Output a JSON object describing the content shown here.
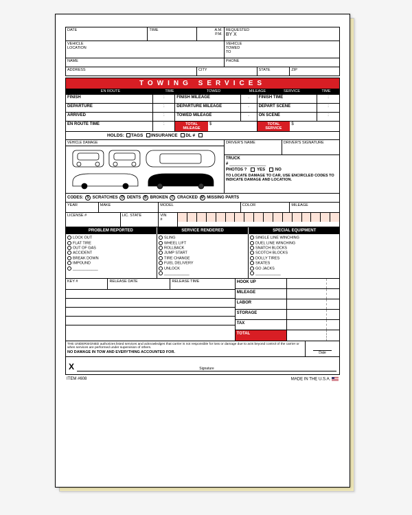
{
  "colors": {
    "red": "#d81e24",
    "black": "#000000",
    "white": "#ffffff",
    "vin_bg": "#fde4d9",
    "copy_bg": "#f0e8b8"
  },
  "header": {
    "date": "DATE",
    "time": "TIME",
    "am": "A.M.",
    "pm": "P.M.",
    "requested_by": "REQUESTED",
    "by_x": "BY X",
    "vehicle": "VEHICLE",
    "location": "LOCATION",
    "towed_to": "VEHICLE\nTOWED\nTO",
    "name": "NAME",
    "phone": "PHONE",
    "address": "ADDRESS",
    "city": "CITY",
    "state": "STATE",
    "zip": "ZIP"
  },
  "banner": "TOWING SERVICES",
  "svc_headers": {
    "en_route": "EN ROUTE",
    "time": "TIME",
    "towed": "TOWED",
    "mileage": "MILEAGE",
    "service": "SERVICE",
    "time2": "TIME"
  },
  "svc_rows": {
    "finish": "FINISH",
    "finish_mileage": "FINISH MILEAGE",
    "finish_time": "FINISH TIME",
    "departure": "DEPARTURE",
    "departure_mileage": "DEPARTURE MILEAGE",
    "depart_scene": "DEPART SCENE",
    "arrived": "ARRIVED",
    "towed_mileage": "TOWED MILEAGE",
    "on_scene": "ON SCENE",
    "en_route_time": "EN ROUTE TIME",
    "total_mileage": "TOTAL\nMILEAGE",
    "total_service": "TOTAL\nSERVICE",
    "dollar": "$"
  },
  "holds": {
    "label": "HOLDS:",
    "tags": "TAGS",
    "insurance": "INSURANCE",
    "dl": "DL #"
  },
  "mid": {
    "vehicle_damage": "VEHICLE DAMAGE",
    "drivers_name": "DRIVER'S NAME",
    "drivers_signature": "DRIVER'S SIGNATURE",
    "truck": "TRUCK",
    "hash": "#",
    "photos": "PHOTOS ?",
    "yes": "YES",
    "no": "NO",
    "locate": "TO LOCATE DAMAGE TO CAR, USE ENCIRCLED CODES TO INDICATE DAMAGE AND LOCATION."
  },
  "codes": {
    "label": "CODES:",
    "items": [
      {
        "sym": "S",
        "txt": "SCRATCHES"
      },
      {
        "sym": "D",
        "txt": "DENTS"
      },
      {
        "sym": "B",
        "txt": "BROKEN"
      },
      {
        "sym": "C",
        "txt": "CRACKED"
      },
      {
        "sym": "M",
        "txt": "MISSING PARTS"
      }
    ]
  },
  "veh": {
    "year": "YEAR",
    "make": "MAKE",
    "model": "MODEL",
    "color": "COLOR",
    "mileage": "MILEAGE"
  },
  "lic": {
    "license": "LICENSE #",
    "lic_state": "LIC. STATE",
    "vin": "VIN\n#",
    "vin_count": 17
  },
  "lists": {
    "headers": [
      "PROBLEM REPORTED",
      "SERVICE RENDERED",
      "SPECIAL EQUIPMENT"
    ],
    "problem": [
      "LOCK OUT",
      "FLAT TIRE",
      "OUT OF GAS",
      "ACCIDENT",
      "BREAK DOWN",
      "IMPOUND"
    ],
    "service": [
      "SLING",
      "WHEEL LIFT",
      "ROLLBACK",
      "JUMP START",
      "TIRE CHANGE",
      "FUEL DELIVERY",
      "UNLOCK"
    ],
    "equipment": [
      "SINGLE LINE WINCHING",
      "DUEL LINE WINCHING",
      "SNATCH BLOCKS",
      "SCOTCH BLOCKS",
      "DOLLY TIRES",
      "SKATES",
      "GO JACKS"
    ]
  },
  "btm": {
    "key": "KEY #",
    "release_date": "RELEASE DATE",
    "release_time": "RELEASE TIME",
    "charges": [
      "HOOK UP",
      "MILEAGE",
      "LABOR",
      "STORAGE",
      "TAX"
    ],
    "total": "TOTAL"
  },
  "disclaimer": {
    "text": "THE UNDERSIGNED authorizes listed services and acknowledges that carrier is not responsible for loss or damage due to acts beyond control of the carrier or when services are performed under supervision of others.",
    "bold": "NO DAMAGE IN TOW AND EVERYTHING ACCOUNTED FOR.",
    "date": "Date"
  },
  "sig": {
    "x": "X",
    "label": "Signature"
  },
  "foot": {
    "item": "ITEM #608",
    "made": "MADE IN THE U.S.A."
  }
}
